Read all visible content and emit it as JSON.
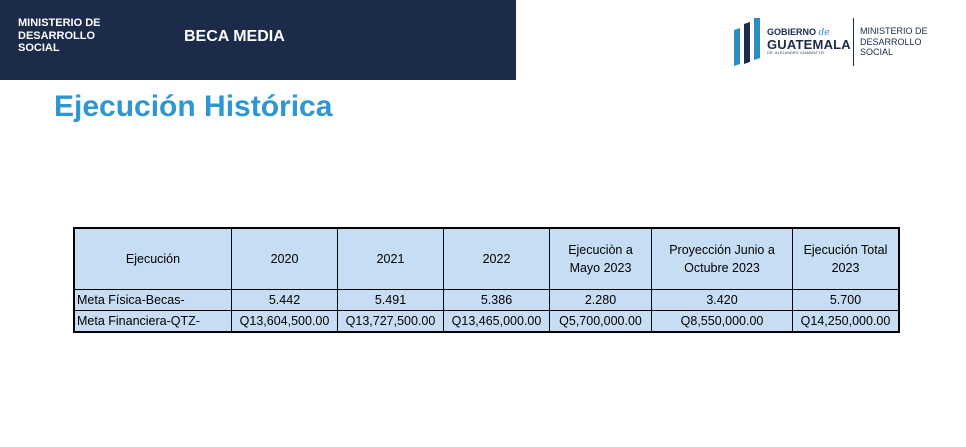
{
  "header": {
    "ministry_lines": [
      "MINISTERIO DE",
      "DESARROLLO",
      "SOCIAL"
    ],
    "program": "BECA MEDIA"
  },
  "logo": {
    "gobierno": "GOBIERNO",
    "de": "de",
    "guatemala": "GUATEMALA",
    "subtitle": "DR. ALEJANDRO GIAMMATTEI",
    "ministry_lines": [
      "MINISTERIO DE",
      "DESARROLLO",
      "SOCIAL"
    ],
    "colors": {
      "navy": "#1b2b49",
      "blue": "#2d8bc6"
    }
  },
  "page": {
    "title": "Ejecución Histórica"
  },
  "table": {
    "headers": [
      "Ejecución",
      "2020",
      "2021",
      "2022",
      "Ejecuciòn a Mayo 2023",
      "Proyección Junio a Octubre 2023",
      "Ejecución Total 2023"
    ],
    "rows": [
      [
        "Meta Física-Becas-",
        "5.442",
        "5.491",
        "5.386",
        "2.280",
        "3.420",
        "5.700"
      ],
      [
        "Meta Financiera-QTZ-",
        "Q13,604,500.00",
        "Q13,727,500.00",
        "Q13,465,000.00",
        "Q5,700,000.00",
        "Q8,550,000.00",
        "Q14,250,000.00"
      ]
    ]
  },
  "colors": {
    "banner": "#1b2b49",
    "title": "#2e96d3",
    "table_fill": "#c7ddf3"
  }
}
